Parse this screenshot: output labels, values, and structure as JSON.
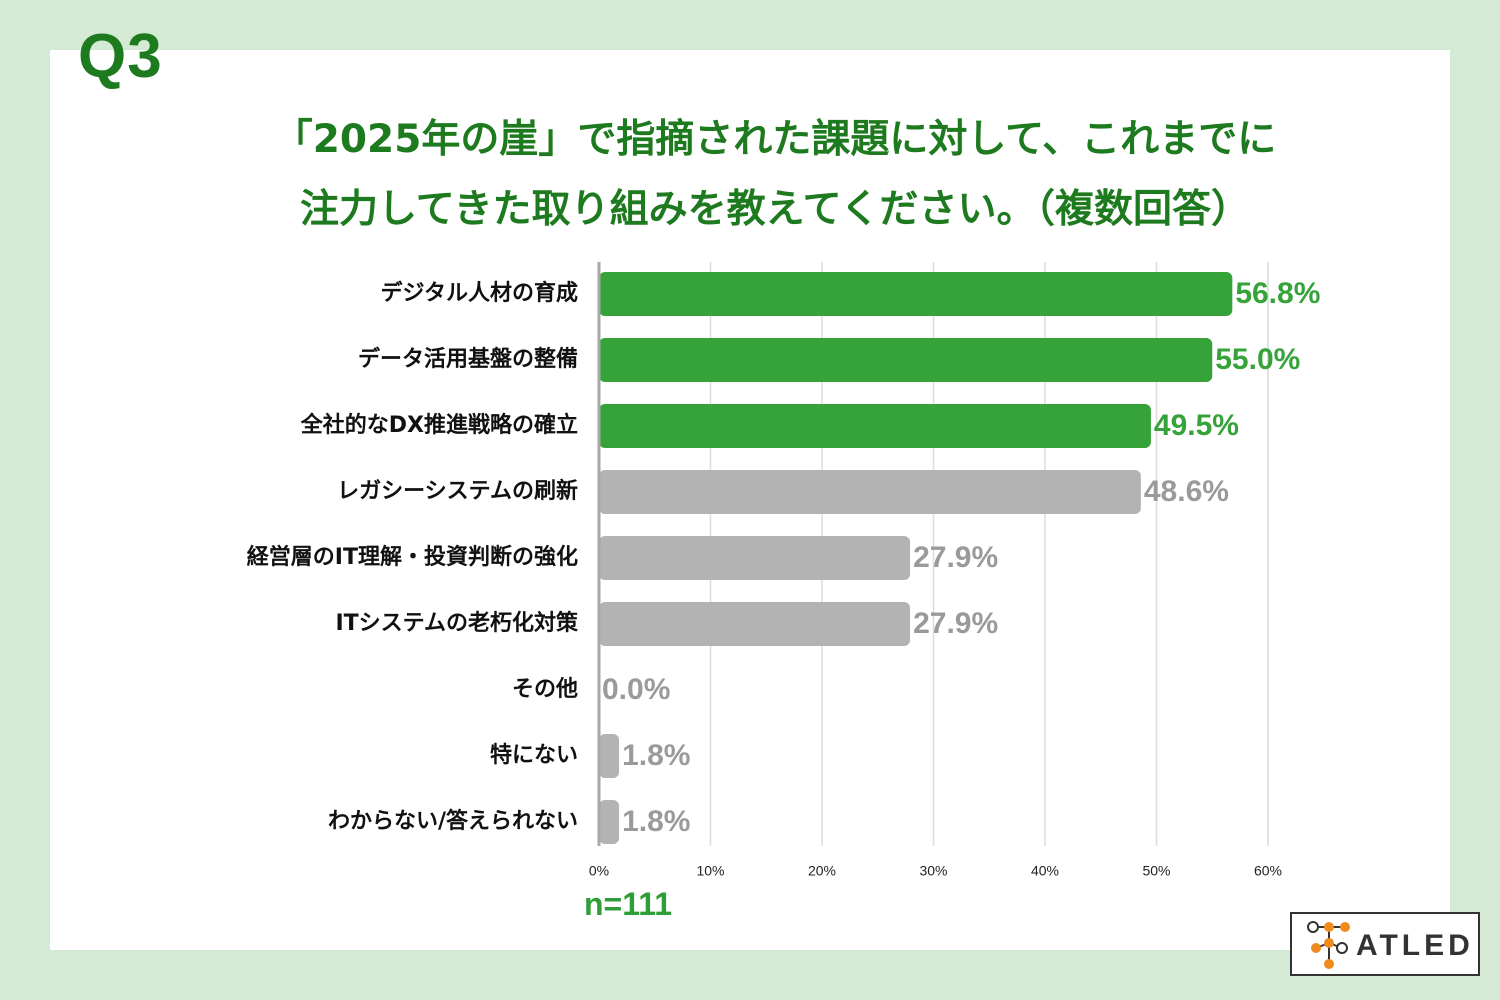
{
  "question_label": "Q3",
  "title": {
    "line1": "「2025年の崖」で指摘された課題に対して、これまでに",
    "line2": "注力してきた取り組みを教えてください。（複数回答）"
  },
  "sample_size": "n=111",
  "brand": {
    "name": "ATLED"
  },
  "colors": {
    "highlight": "#35a33a",
    "highlight_text": "#35a33a",
    "muted": "#b3b3b3",
    "muted_text": "#9a9a9a",
    "title": "#1e7a1e",
    "background": "#d4ead4"
  },
  "chart_data": {
    "type": "bar",
    "orientation": "horizontal",
    "categories": [
      "デジタル人材の育成",
      "データ活用基盤の整備",
      "全社的なDX推進戦略の確立",
      "レガシーシステムの刷新",
      "経営層のIT理解・投資判断の強化",
      "ITシステムの老朽化対策",
      "その他",
      "特にない",
      "わからない/答えられない"
    ],
    "values": [
      56.8,
      55.0,
      49.5,
      48.6,
      27.9,
      27.9,
      0.0,
      1.8,
      1.8
    ],
    "value_labels": [
      "56.8%",
      "55.0%",
      "49.5%",
      "48.6%",
      "27.9%",
      "27.9%",
      "0.0%",
      "1.8%",
      "1.8%"
    ],
    "highlighted": [
      true,
      true,
      true,
      false,
      false,
      false,
      false,
      false,
      false
    ],
    "xlim": [
      0,
      60
    ],
    "x_ticks": [
      0,
      10,
      20,
      30,
      40,
      50,
      60
    ],
    "x_tick_labels": [
      "0%",
      "10%",
      "20%",
      "30%",
      "40%",
      "50%",
      "60%"
    ],
    "grid": true,
    "unit": "%"
  }
}
